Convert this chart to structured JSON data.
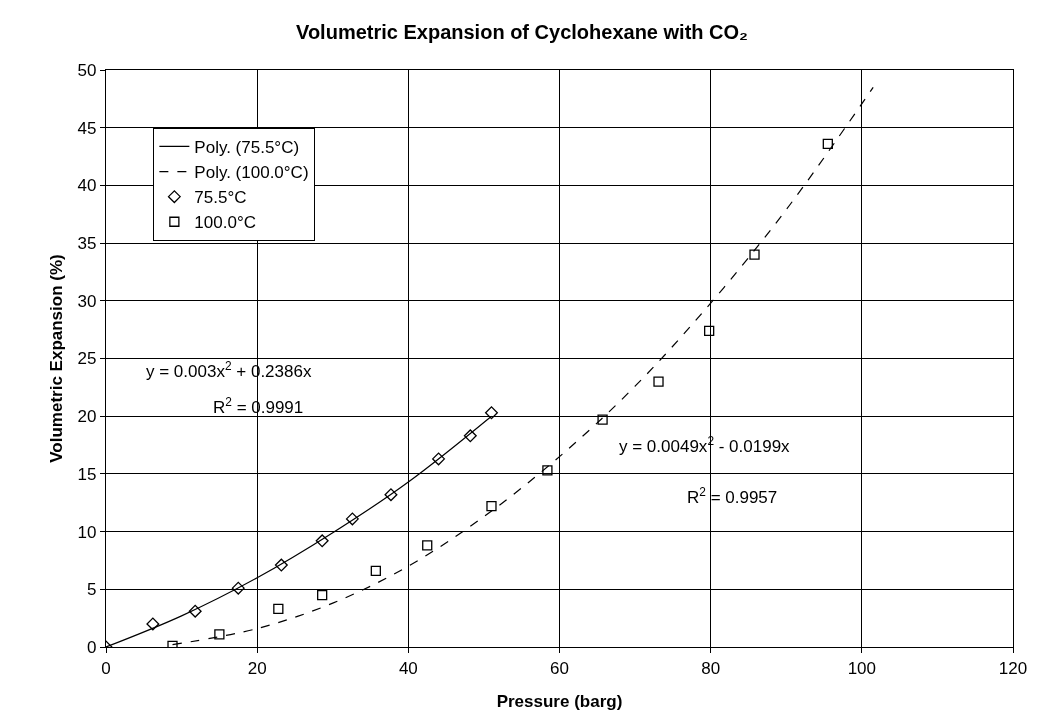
{
  "chart_data": {
    "type": "scatter",
    "title": "Volumetric Expansion of Cyclohexane with CO₂",
    "xlabel": "Pressure (barg)",
    "ylabel": "Volumetric Expansion (%)",
    "series": [
      {
        "name": "75.5°C",
        "marker": "diamond",
        "color": "#000000",
        "x": [
          0,
          6.2,
          11.8,
          17.5,
          23.2,
          28.6,
          32.6,
          37.7,
          44,
          48.2,
          51
        ],
        "values": [
          0,
          2,
          3.1,
          5.1,
          7.1,
          9.2,
          11.1,
          13.2,
          16.3,
          18.3,
          20.3
        ]
      },
      {
        "name": "100.0°C",
        "marker": "square",
        "color": "#000000",
        "x": [
          8.8,
          15,
          22.8,
          28.6,
          35.7,
          42.5,
          51,
          58.4,
          65.7,
          73.1,
          79.8,
          85.8,
          95.5
        ],
        "values": [
          0.1,
          1.1,
          3.3,
          4.5,
          6.6,
          8.8,
          12.2,
          15.3,
          19.7,
          23,
          27.4,
          34,
          43.6
        ]
      },
      {
        "name": "Poly. (75.5°C)",
        "type": "line",
        "line_style": "solid",
        "color": "#000000",
        "x": [
          0,
          10,
          20,
          30,
          40,
          51
        ],
        "values": [
          0,
          2.7,
          6,
          9.9,
          14.3,
          20
        ]
      },
      {
        "name": "Poly. (100.0°C)",
        "type": "line",
        "line_style": "dashed",
        "color": "#000000",
        "x": [
          8.8,
          20,
          30,
          40,
          50,
          60,
          70,
          80,
          90,
          101.5
        ],
        "values": [
          0.2,
          1.6,
          3.8,
          7,
          11.3,
          16.5,
          22.6,
          29.8,
          37.9,
          48.5
        ]
      }
    ],
    "annotations": [
      "y = 0.003x$^{2}$ + 0.2386x",
      "R$^{2}$ = 0.9991",
      "y = 0.0049x$^{2}$ - 0.0199x",
      "R$^{2}$ = 0.9957"
    ],
    "xlim": [
      0,
      120
    ],
    "xticks": [
      0,
      20,
      40,
      60,
      80,
      100,
      120
    ],
    "ylim": [
      0,
      50
    ],
    "yticks": [
      0,
      5,
      10,
      15,
      20,
      25,
      30,
      35,
      40,
      45,
      50
    ],
    "grid": true,
    "legend": "top left"
  }
}
